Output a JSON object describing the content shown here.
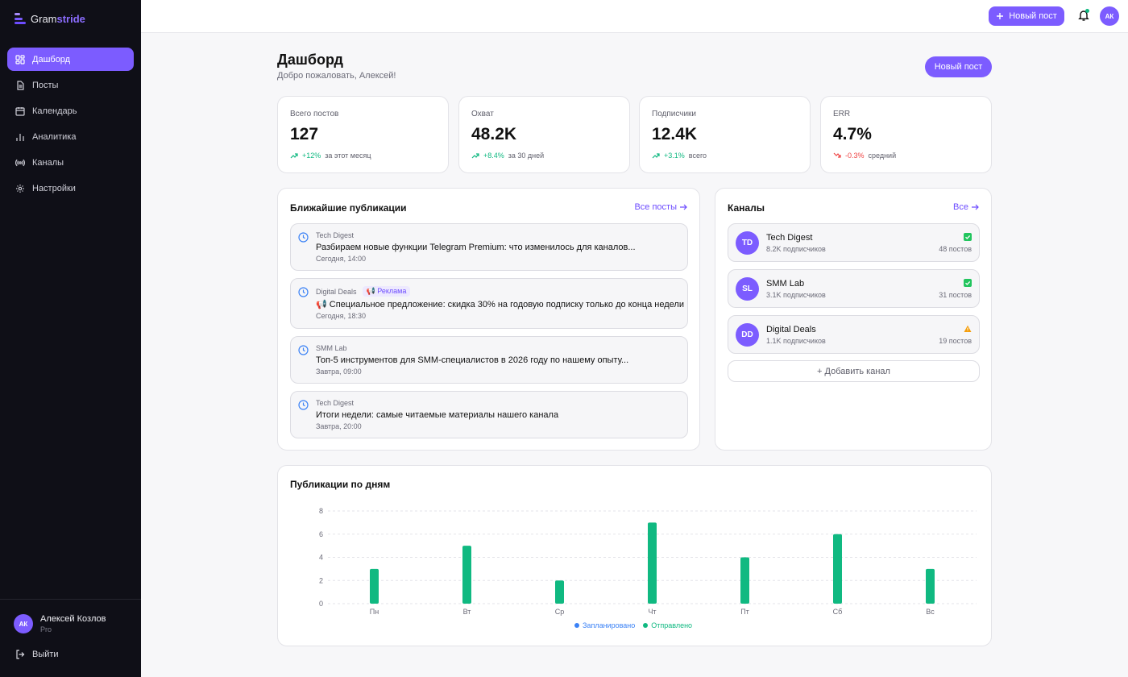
{
  "app": {
    "logo_prefix": "Gram",
    "logo_accent": "stride"
  },
  "sidebar": {
    "items": [
      {
        "label": "Дашборд",
        "icon": "dashboard-icon",
        "active": true
      },
      {
        "label": "Посты",
        "icon": "document-icon"
      },
      {
        "label": "Календарь",
        "icon": "calendar-icon"
      },
      {
        "label": "Аналитика",
        "icon": "bar-chart-icon"
      },
      {
        "label": "Каналы",
        "icon": "broadcast-icon"
      },
      {
        "label": "Настройки",
        "icon": "gear-icon"
      }
    ],
    "user": {
      "initials": "АК",
      "name": "Алексей Козлов",
      "plan": "Pro"
    },
    "logout_label": "Выйти"
  },
  "topbar": {
    "new_post_label": "Новый пост",
    "avatar_initials": "АК"
  },
  "header": {
    "title": "Дашборд",
    "subtitle": "Добро пожаловать, Алексей!",
    "new_post_label": "Новый пост"
  },
  "stats": [
    {
      "label": "Всего постов",
      "value": "127",
      "delta": "+12%",
      "note": "за этот месяц",
      "trend": "up"
    },
    {
      "label": "Охват",
      "value": "48.2K",
      "delta": "+8.4%",
      "note": "за 30 дней",
      "trend": "up"
    },
    {
      "label": "Подписчики",
      "value": "12.4K",
      "delta": "+3.1%",
      "note": "всего",
      "trend": "up"
    },
    {
      "label": "ERR",
      "value": "4.7%",
      "delta": "-0.3%",
      "note": "средний",
      "trend": "down"
    }
  ],
  "upcoming": {
    "title": "Ближайшие публикации",
    "link": "Все посты",
    "posts": [
      {
        "channel": "Tech Digest",
        "text": "Разбираем новые функции Telegram Premium: что изменилось для каналов...",
        "time": "Сегодня, 14:00",
        "tag": ""
      },
      {
        "channel": "Digital Deals",
        "tag": "📢 Реклама",
        "text": "📢 Специальное предложение: скидка 30% на годовую подписку только до конца недели",
        "time": "Сегодня, 18:30"
      },
      {
        "channel": "SMM Lab",
        "text": "Топ-5 инструментов для SMM-специалистов в 2026 году по нашему опыту...",
        "time": "Завтра, 09:00",
        "tag": ""
      },
      {
        "channel": "Tech Digest",
        "text": "Итоги недели: самые читаемые материалы нашего канала",
        "time": "Завтра, 20:00",
        "tag": ""
      }
    ]
  },
  "channels": {
    "title": "Каналы",
    "link": "Все",
    "items": [
      {
        "initials": "TD",
        "name": "Tech Digest",
        "subs": "8.2K подписчиков",
        "posts": "48 постов",
        "status": "check-icon"
      },
      {
        "initials": "SL",
        "name": "SMM Lab",
        "subs": "3.1K подписчиков",
        "posts": "31 постов",
        "status": "check-icon"
      },
      {
        "initials": "DD",
        "name": "Digital Deals",
        "subs": "1.1K подписчиков",
        "posts": "19 постов",
        "status": "warning-icon"
      }
    ],
    "add_label": "+ Добавить канал"
  },
  "chart_data": {
    "type": "bar",
    "title": "Публикации по дням",
    "categories": [
      "Пн",
      "Вт",
      "Ср",
      "Чт",
      "Пт",
      "Сб",
      "Вс"
    ],
    "series": [
      {
        "name": "Запланировано",
        "color": "#3b82f6",
        "values": [
          0,
          0,
          0,
          0,
          0,
          0,
          0
        ]
      },
      {
        "name": "Отправлено",
        "color": "#10b981",
        "values": [
          3,
          5,
          2,
          7,
          4,
          6,
          3
        ]
      }
    ],
    "yticks": [
      "0",
      "2",
      "4",
      "6",
      "8"
    ],
    "ylim": [
      0,
      8
    ],
    "grid": true,
    "legend": "bottom-center"
  },
  "colors": {
    "accent": "#7c5cff",
    "sidebar_bg": "#0f0f17",
    "success": "#10b981",
    "danger": "#ef4444"
  }
}
